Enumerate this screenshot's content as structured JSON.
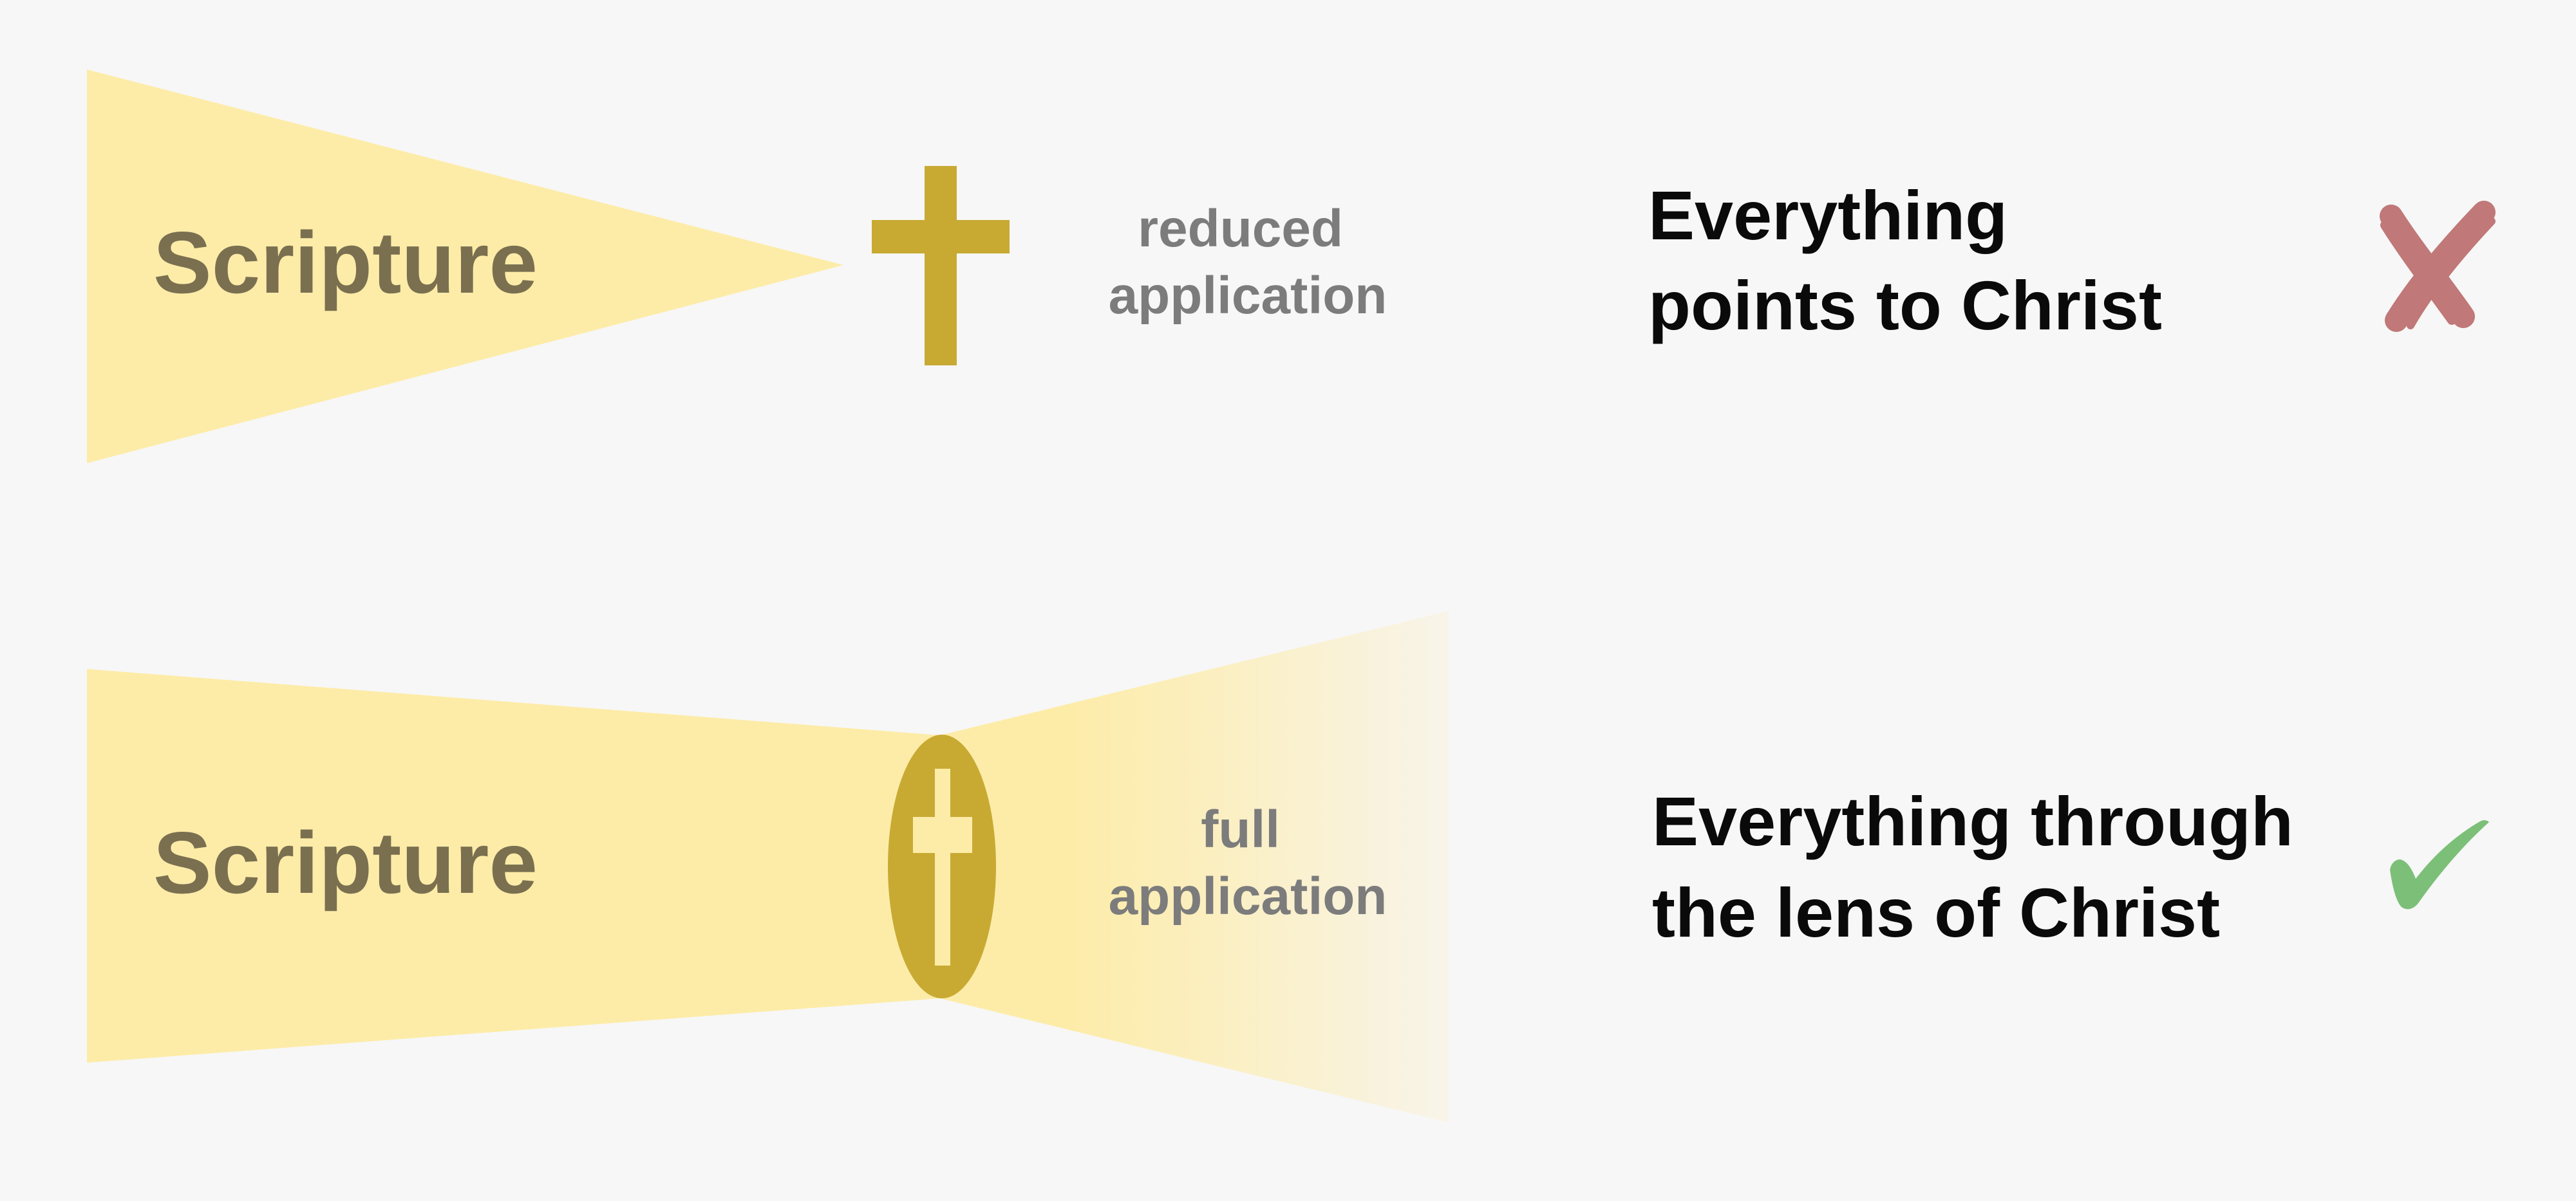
{
  "colors": {
    "background": "#f7f7f7",
    "beam": "#fdeca8",
    "beam_fade": "#f8f4e9",
    "cross": "#c8aa33",
    "cross_cutout": "#fdeca8",
    "scripture_text": "#7a7050",
    "application_text": "#7c7c7c",
    "statement_text": "#0a0a0a",
    "x_mark": "#c07878",
    "check_mark": "#7cbf78"
  },
  "rows": [
    {
      "scripture_label": "Scripture",
      "application_line1": "reduced",
      "application_line2": "application",
      "statement_line1": "Everything",
      "statement_line2": "points to Christ",
      "verdict_icon": "x-mark-icon",
      "cross_icon": "cross-icon"
    },
    {
      "scripture_label": "Scripture",
      "application_line1": "full",
      "application_line2": "application",
      "statement_line1": "Everything through",
      "statement_line2": "the lens of Christ",
      "verdict_icon": "check-mark-icon",
      "cross_icon": "cross-lens-icon"
    }
  ]
}
